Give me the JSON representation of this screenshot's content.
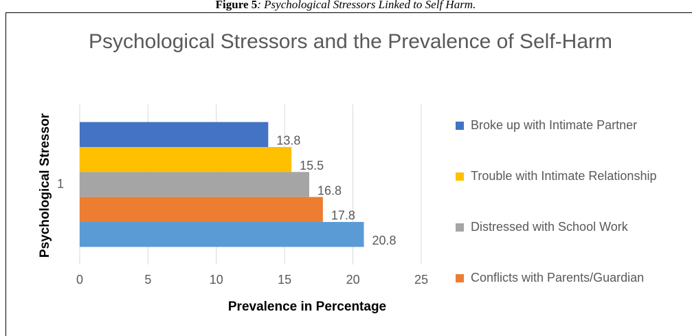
{
  "caption": {
    "label": "Figure 5",
    "text": ": Psychological Stressors Linked to Self Harm."
  },
  "chart_data": {
    "type": "bar",
    "orientation": "horizontal",
    "title": "Psychological Stressors and the Prevalence of Self-Harm",
    "x_label": "Prevalence in Percentage",
    "y_label": "Psychological Stressor",
    "categories": [
      "1"
    ],
    "series": [
      {
        "name": "Broke up with Intimate Partner",
        "color": "#4472c4",
        "values": [
          13.8
        ]
      },
      {
        "name": "Trouble with Intimate Relationship",
        "color": "#ffc000",
        "values": [
          15.5
        ]
      },
      {
        "name": "Distressed with School Work",
        "color": "#a5a5a5",
        "values": [
          16.8
        ]
      },
      {
        "name": "Conflicts with Parents/Guardian",
        "color": "#ed7d31",
        "values": [
          17.8
        ]
      },
      {
        "color": "#5b9bd5",
        "values": [
          20.8
        ]
      }
    ],
    "xlim": [
      0,
      25
    ],
    "xticks": [
      0,
      5,
      10,
      15,
      20,
      25
    ],
    "grid": true,
    "legend": "right"
  }
}
